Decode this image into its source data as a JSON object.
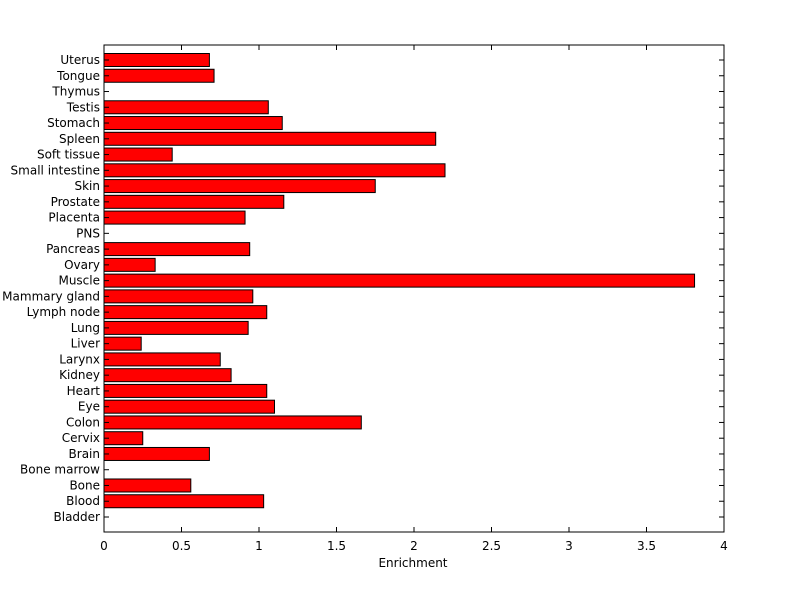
{
  "chart_data": {
    "type": "bar",
    "orientation": "horizontal",
    "categories": [
      "Bladder",
      "Blood",
      "Bone",
      "Bone marrow",
      "Brain",
      "Cervix",
      "Colon",
      "Eye",
      "Heart",
      "Kidney",
      "Larynx",
      "Liver",
      "Lung",
      "Lymph node",
      "Mammary gland",
      "Muscle",
      "Ovary",
      "Pancreas",
      "PNS",
      "Placenta",
      "Prostate",
      "Skin",
      "Small intestine",
      "Soft tissue",
      "Spleen",
      "Stomach",
      "Testis",
      "Thymus",
      "Tongue",
      "Uterus"
    ],
    "values": [
      0,
      1.03,
      0.56,
      0,
      0.68,
      0.25,
      1.66,
      1.1,
      1.05,
      0.82,
      0.75,
      0.24,
      0.93,
      1.05,
      0.96,
      3.81,
      0.33,
      0.94,
      0,
      0.91,
      1.16,
      1.75,
      2.2,
      0.44,
      2.14,
      1.15,
      1.06,
      0,
      0.71,
      0.68
    ],
    "xlabel": "Enrichment",
    "ylabel": "",
    "xlim": [
      0,
      4
    ],
    "xticks": [
      "0",
      "0.5",
      "1",
      "1.5",
      "2",
      "2.5",
      "3",
      "3.5",
      "4"
    ],
    "bar_color": "#ff0000",
    "edge_color": "#000000",
    "grid": false
  }
}
